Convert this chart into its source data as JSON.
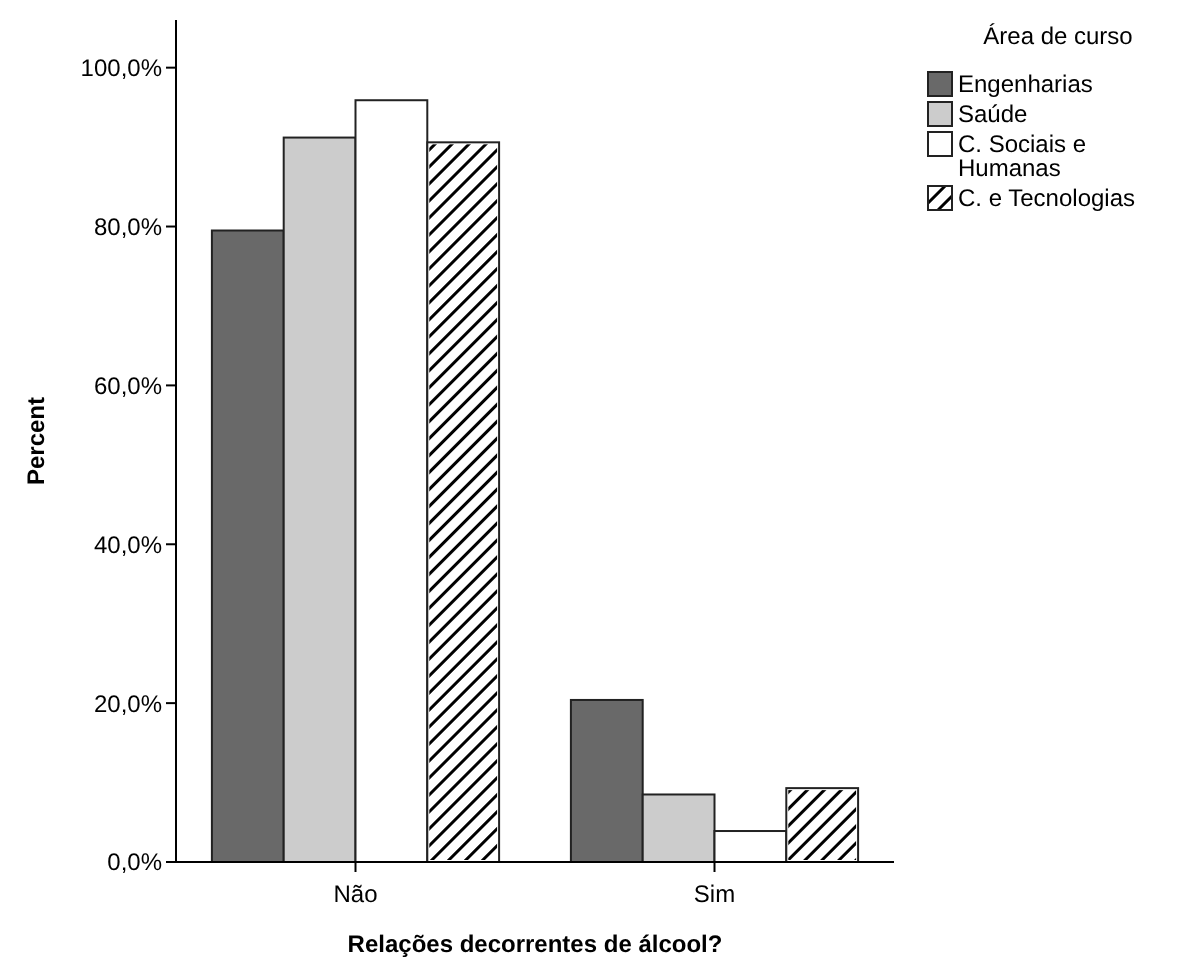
{
  "chart_data": {
    "type": "bar",
    "xlabel": "Relações decorrentes de álcool?",
    "ylabel": "Percent",
    "legend_title": "Área de curso",
    "legend": "right",
    "categories": [
      "Não",
      "Sim"
    ],
    "series": [
      {
        "name": "Engenharias",
        "color": "#696969",
        "values": [
          79.5,
          20.4
        ]
      },
      {
        "name": "Saúde",
        "color": "#cccccc",
        "values": [
          91.2,
          8.5
        ]
      },
      {
        "name": "C. Sociais e Humanas",
        "color": "#ffffff",
        "values": [
          95.9,
          3.9
        ]
      },
      {
        "name": "C. e Tecnologias",
        "color": "#ffffff",
        "values": [
          90.6,
          9.3
        ]
      }
    ],
    "ylim": [
      0,
      106
    ],
    "yticks": [
      {
        "value": 0,
        "label": "0,0%"
      },
      {
        "value": 20,
        "label": "20,0%"
      },
      {
        "value": 40,
        "label": "40,0%"
      },
      {
        "value": 60,
        "label": "60,0%"
      },
      {
        "value": 80,
        "label": "80,0%"
      },
      {
        "value": 100,
        "label": "100,0%"
      }
    ]
  }
}
